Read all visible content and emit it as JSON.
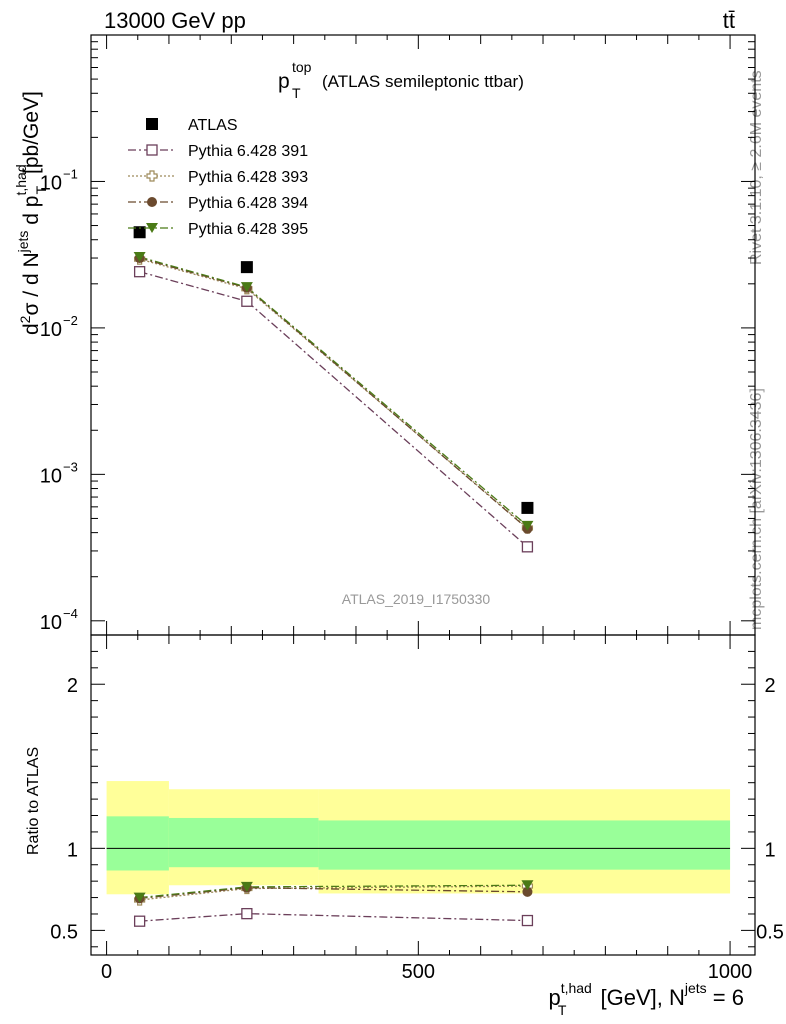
{
  "header": {
    "left": "13000 GeV pp",
    "right": "tt̄"
  },
  "side_labels": {
    "rivet": "Rivet 3.1.10, ≥ 2.6M events",
    "mcplots": "mcplots.cern.ch [arXiv:1306.3436]"
  },
  "chart_data": {
    "type": "scatter",
    "title_main": "p",
    "title_sup": "top",
    "title_sub": "T",
    "title_rest": "(ATLAS semileptonic ttbar)",
    "analysis_label": "ATLAS_2019_I1750330",
    "x": [
      53,
      225,
      675
    ],
    "xlim": [
      -25,
      1040
    ],
    "ylim_main": [
      8e-05,
      1.0
    ],
    "ylim_ratio": [
      0.35,
      2.3
    ],
    "y_scale_main": "log",
    "legend_position": "top-left",
    "x_tick_labels": [
      "0",
      "500",
      "1000"
    ],
    "y_tick_labels_main": [
      "10",
      "10",
      "10",
      "10"
    ],
    "y_tick_exps_main": [
      "−1",
      "−2",
      "−3",
      "−4"
    ],
    "y_tick_labels_ratio": [
      "0.5",
      "1",
      "2"
    ],
    "ylabel_main_text": "d²σ / d N^jets d p_T^t,had [pb/GeV]",
    "ylabel_ratio": "Ratio to ATLAS",
    "xlabel_text": "p_T^t,had [GeV], N^jets = 6",
    "series": [
      {
        "name": "ATLAS",
        "values": [
          0.045,
          0.026,
          0.00059
        ],
        "marker": "square-filled",
        "color": "#000000",
        "line": "none"
      },
      {
        "name": "Pythia 6.428 391",
        "values": [
          0.0242,
          0.0152,
          0.00032
        ],
        "marker": "square-open",
        "color": "#6b3f5a",
        "line": "dashdot"
      },
      {
        "name": "Pythia 6.428 393",
        "values": [
          0.0295,
          0.0185,
          0.00043
        ],
        "marker": "cross-open",
        "color": "#9e8a5a",
        "line": "dotted"
      },
      {
        "name": "Pythia 6.428 394",
        "values": [
          0.03,
          0.0188,
          0.000425
        ],
        "marker": "circle-filled",
        "color": "#6b4a2e",
        "line": "dashdot"
      },
      {
        "name": "Pythia 6.428 395",
        "values": [
          0.0305,
          0.019,
          0.000445
        ],
        "marker": "triangle-down-filled",
        "color": "#4a7a16",
        "line": "dashdot"
      }
    ],
    "ratio_series": [
      {
        "name": "Pythia 6.428 391",
        "values": [
          0.556,
          0.602,
          0.56
        ]
      },
      {
        "name": "Pythia 6.428 393",
        "values": [
          0.685,
          0.755,
          0.77
        ]
      },
      {
        "name": "Pythia 6.428 394",
        "values": [
          0.695,
          0.76,
          0.735
        ]
      },
      {
        "name": "Pythia 6.428 395",
        "values": [
          0.7,
          0.765,
          0.775
        ]
      }
    ],
    "bands": [
      {
        "x_range": [
          0,
          100
        ],
        "inner": [
          0.865,
          1.195
        ],
        "outer": [
          0.72,
          1.41
        ]
      },
      {
        "x_range": [
          100,
          340
        ],
        "inner": [
          0.885,
          1.185
        ],
        "outer": [
          0.775,
          1.36
        ]
      },
      {
        "x_range": [
          340,
          1000
        ],
        "inner": [
          0.87,
          1.17
        ],
        "outer": [
          0.725,
          1.36
        ]
      }
    ],
    "band_colors": {
      "inner": "#99ff99",
      "outer": "#ffff99"
    }
  }
}
